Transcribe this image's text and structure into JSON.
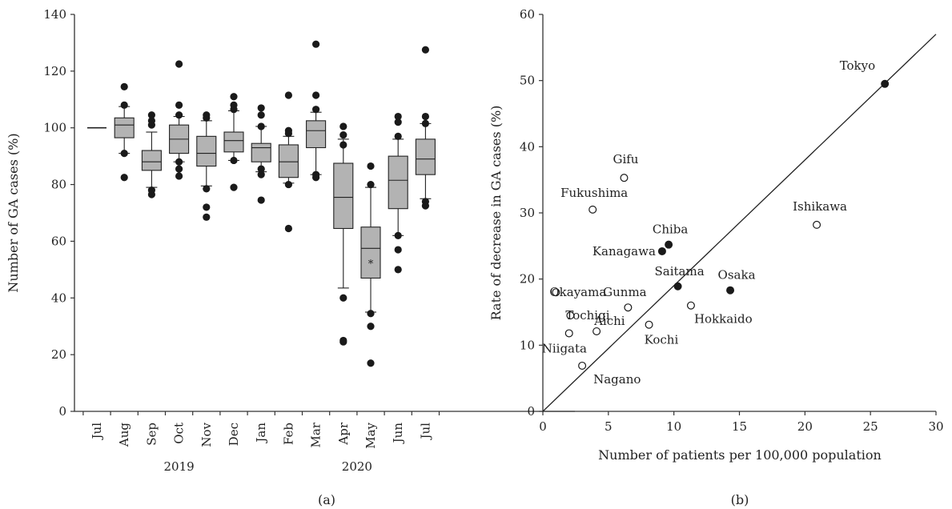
{
  "panels": {
    "a_label": "(a)",
    "b_label": "(b)"
  },
  "chart_data": [
    {
      "type": "box",
      "panel": "(a)",
      "ylabel": "Number of GA cases (%)",
      "ylim": [
        0,
        140
      ],
      "yticks": [
        0,
        20,
        40,
        60,
        80,
        100,
        120,
        140
      ],
      "categories": [
        "Jul",
        "Aug",
        "Sep",
        "Oct",
        "Nov",
        "Dec",
        "Jan",
        "Feb",
        "Mar",
        "Apr",
        "May",
        "Jun",
        "Jul"
      ],
      "year_labels": [
        {
          "label": "2019",
          "category_index": 3
        },
        {
          "label": "2020",
          "category_index": 9.5
        }
      ],
      "boxes": [
        {
          "category": "Jul",
          "single": 100
        },
        {
          "category": "Aug",
          "whisker_low": 91,
          "q1": 96.5,
          "median": 101,
          "q3": 103.5,
          "whisker_high": 107.5,
          "outliers": [
            82.5,
            91,
            108,
            114.5
          ]
        },
        {
          "category": "Sep",
          "whisker_low": 79,
          "q1": 85,
          "median": 88,
          "q3": 92,
          "whisker_high": 98.5,
          "outliers": [
            76.5,
            78,
            101,
            102.5,
            104.5
          ]
        },
        {
          "category": "Oct",
          "whisker_low": 88,
          "q1": 91,
          "median": 96,
          "q3": 101,
          "whisker_high": 104,
          "outliers": [
            83,
            85.5,
            88,
            104.5,
            108,
            122.5
          ]
        },
        {
          "category": "Nov",
          "whisker_low": 79.5,
          "q1": 86.5,
          "median": 91,
          "q3": 97,
          "whisker_high": 102.5,
          "outliers": [
            68.5,
            72,
            78.5,
            103.5,
            104.5
          ]
        },
        {
          "category": "Dec",
          "whisker_low": 88.5,
          "q1": 91.5,
          "median": 95.5,
          "q3": 98.5,
          "whisker_high": 106,
          "outliers": [
            79,
            88.5,
            106.5,
            108,
            111
          ]
        },
        {
          "category": "Jan",
          "whisker_low": 84.5,
          "q1": 88,
          "median": 93,
          "q3": 94.5,
          "whisker_high": 100.5,
          "outliers": [
            74.5,
            83.5,
            85.5,
            100.5,
            104.5,
            107
          ]
        },
        {
          "category": "Feb",
          "whisker_low": 80.5,
          "q1": 82.5,
          "median": 88,
          "q3": 94,
          "whisker_high": 97,
          "outliers": [
            64.5,
            80,
            98,
            99,
            111.5
          ]
        },
        {
          "category": "Mar",
          "whisker_low": 83.5,
          "q1": 93,
          "median": 99,
          "q3": 102.5,
          "whisker_high": 105.5,
          "outliers": [
            82.5,
            83.5,
            106.5,
            111.5,
            129.5
          ]
        },
        {
          "category": "Apr",
          "whisker_low": 43.5,
          "q1": 64.5,
          "median": 75.5,
          "q3": 87.5,
          "whisker_high": 96,
          "outliers": [
            24.5,
            25,
            40,
            94,
            97.5,
            100.5
          ]
        },
        {
          "category": "May",
          "whisker_low": 35,
          "q1": 47,
          "median": 57.5,
          "q3": 65,
          "whisker_high": 79,
          "mean": 52.5,
          "outliers": [
            17,
            30,
            34.5,
            80,
            86.5
          ]
        },
        {
          "category": "Jun",
          "whisker_low": 62,
          "q1": 71.5,
          "median": 81.5,
          "q3": 90,
          "whisker_high": 96,
          "outliers": [
            50,
            57,
            62,
            97,
            102,
            104
          ]
        },
        {
          "category": "Jul",
          "whisker_low": 75,
          "q1": 83.5,
          "median": 89,
          "q3": 96,
          "whisker_high": 101.5,
          "outliers": [
            72.5,
            74,
            101.5,
            104,
            127.5
          ]
        }
      ]
    },
    {
      "type": "scatter",
      "panel": "(b)",
      "xlabel": "Number of patients per 100,000 population",
      "ylabel": "Rate of decrease in GA cases (%)",
      "xlim": [
        0,
        30
      ],
      "ylim": [
        0,
        60
      ],
      "xticks": [
        0,
        5,
        10,
        15,
        20,
        25,
        30
      ],
      "yticks": [
        0,
        10,
        20,
        30,
        40,
        50,
        60
      ],
      "trendline": {
        "x": [
          0,
          30
        ],
        "y": [
          0,
          57
        ]
      },
      "points": [
        {
          "name": "Tokyo",
          "x": 26.1,
          "y": 49.5,
          "filled": true
        },
        {
          "name": "Gifu",
          "x": 6.2,
          "y": 35.3,
          "filled": false
        },
        {
          "name": "Fukushima",
          "x": 3.8,
          "y": 30.5,
          "filled": false
        },
        {
          "name": "Ishikawa",
          "x": 20.9,
          "y": 28.2,
          "filled": false
        },
        {
          "name": "Chiba",
          "x": 9.6,
          "y": 25.2,
          "filled": true
        },
        {
          "name": "Kanagawa",
          "x": 9.1,
          "y": 24.2,
          "filled": true
        },
        {
          "name": "Saitama",
          "x": 10.3,
          "y": 18.9,
          "filled": true
        },
        {
          "name": "Osaka",
          "x": 14.3,
          "y": 18.3,
          "filled": true
        },
        {
          "name": "Okayama",
          "x": 1.0,
          "y": 18.0,
          "filled": false
        },
        {
          "name": "Gunma",
          "x": 6.5,
          "y": 15.7,
          "filled": false
        },
        {
          "name": "Hokkaido",
          "x": 11.3,
          "y": 16.0,
          "filled": false
        },
        {
          "name": "Tochigi",
          "x": 2.1,
          "y": 14.5,
          "filled": false
        },
        {
          "name": "Kochi",
          "x": 8.1,
          "y": 13.1,
          "filled": false
        },
        {
          "name": "Aichi",
          "x": 4.1,
          "y": 12.1,
          "filled": false
        },
        {
          "name": "Niigata",
          "x": 2.0,
          "y": 11.8,
          "filled": false
        },
        {
          "name": "Nagano",
          "x": 3.0,
          "y": 6.9,
          "filled": false
        }
      ]
    }
  ]
}
